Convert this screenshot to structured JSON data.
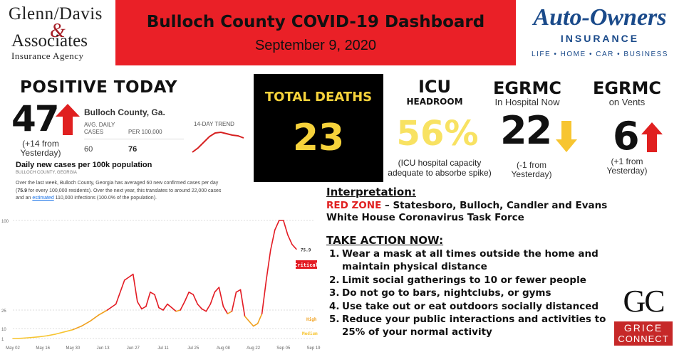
{
  "header": {
    "left_logo": {
      "line1": "Glenn/Davis",
      "amp": "&",
      "line2": "Associates",
      "line3": "Insurance Agency"
    },
    "title": "Bulloch County COVID-19 Dashboard",
    "date": "September 9, 2020",
    "right_logo": {
      "name": "Auto-Owners",
      "sub": "INSURANCE",
      "tagline": "LIFE • HOME • CAR • BUSINESS"
    }
  },
  "positive_today": {
    "title": "POSITIVE TODAY",
    "value": "47",
    "change": "(+14 from Yesterday)",
    "location": "Bulloch County, Ga.",
    "avg_daily_label": "AVG. DAILY CASES",
    "per100k_label": "PER 100,000",
    "avg_daily_value": "60",
    "per100k_value": "76",
    "trend_label": "14-DAY TREND",
    "chart_title": "Daily new cases per 100k population",
    "chart_subtitle": "BULLOCH COUNTY, GEORGIA",
    "paragraph_1": "Over the last week, Bulloch County, Georgia has averaged 60 new confirmed cases per day (",
    "paragraph_bold": "75.9",
    "paragraph_2": " for every 100,000 residents). Over the next year, this translates to around 22,000 cases and an ",
    "paragraph_link": "estimated",
    "paragraph_3": " 110,000 infections (100.0% of the population)."
  },
  "total_deaths": {
    "label": "TOTAL DEATHS",
    "value": "23"
  },
  "icu": {
    "title": "ICU",
    "subtitle": "HEADROOM",
    "value": "56%",
    "note": "(ICU hospital capacity adequate to absorbe spike)"
  },
  "egrmc_hospital": {
    "title": "EGRMC",
    "subtitle": "In Hospital Now",
    "value": "22",
    "change": "(-1 from Yesterday)",
    "arrow_color": "#f7c531"
  },
  "egrmc_vents": {
    "title": "EGRMC",
    "subtitle": "on Vents",
    "value": "6",
    "change": "(+1 from Yesterday)",
    "arrow_color": "#e02020"
  },
  "interpretation": {
    "heading": "Interpretation:",
    "zone_label": "RED ZONE",
    "zone_text": " – Statesboro, Bulloch, Candler and Evans",
    "line2": "White House Coronavirus Task Force"
  },
  "take_action": {
    "heading": "TAKE ACTION NOW:",
    "items": [
      {
        "n": "1.",
        "text": "Wear a mask at all times outside the home and maintain physical distance"
      },
      {
        "n": "2.",
        "text": "Limit social gatherings to 10 or fewer people"
      },
      {
        "n": "3.",
        "text": "Do not go to bars, nightclubs, or gyms"
      },
      {
        "n": "4.",
        "text": "Use take out or eat outdoors socially distanced"
      },
      {
        "n": "5.",
        "text": "Reduce your public interactions and activities to 25% of your normal activity"
      }
    ]
  },
  "grice_logo": {
    "letters": "GC",
    "line1": "GRICE",
    "line2": "CONNECT"
  },
  "chart_data": {
    "type": "line",
    "title": "Daily new cases per 100k population",
    "subtitle": "BULLOCH COUNTY, GEORGIA",
    "x_tick_labels": [
      "May 02",
      "May 16",
      "May 30",
      "Jun 13",
      "Jun 27",
      "Jul 11",
      "Jul 25",
      "Aug 08",
      "Aug 22",
      "Sep 05",
      "Sep 19"
    ],
    "y_tick_labels": [
      "1",
      "10",
      "25",
      "100"
    ],
    "ylim": [
      1,
      100
    ],
    "y_scale": "threshold",
    "threshold_labels": [
      "Critical",
      "High",
      "Medium"
    ],
    "last_value_label": "75.9",
    "series": [
      {
        "x": [
          0,
          4,
          8,
          12,
          16,
          20,
          24,
          28,
          32,
          36,
          40,
          44,
          48,
          52,
          56,
          58,
          60,
          62,
          64,
          66,
          68,
          70,
          72,
          74,
          76,
          78,
          80,
          82,
          84,
          86,
          88,
          90,
          92,
          94,
          96,
          98,
          100,
          102,
          104,
          106,
          108,
          110,
          112,
          114,
          116,
          118,
          120,
          122,
          124,
          126,
          128,
          130,
          132
        ],
        "y": [
          1,
          1.2,
          1.8,
          2.5,
          3.5,
          5,
          7,
          9,
          12,
          16,
          21,
          25,
          30,
          50,
          55,
          32,
          26,
          28,
          40,
          38,
          27,
          25,
          30,
          27,
          24,
          25,
          32,
          40,
          38,
          30,
          26,
          24,
          30,
          40,
          44,
          28,
          22,
          24,
          40,
          42,
          20,
          16,
          12,
          14,
          22,
          50,
          75,
          92,
          100,
          100,
          88,
          80,
          76
        ]
      }
    ]
  }
}
